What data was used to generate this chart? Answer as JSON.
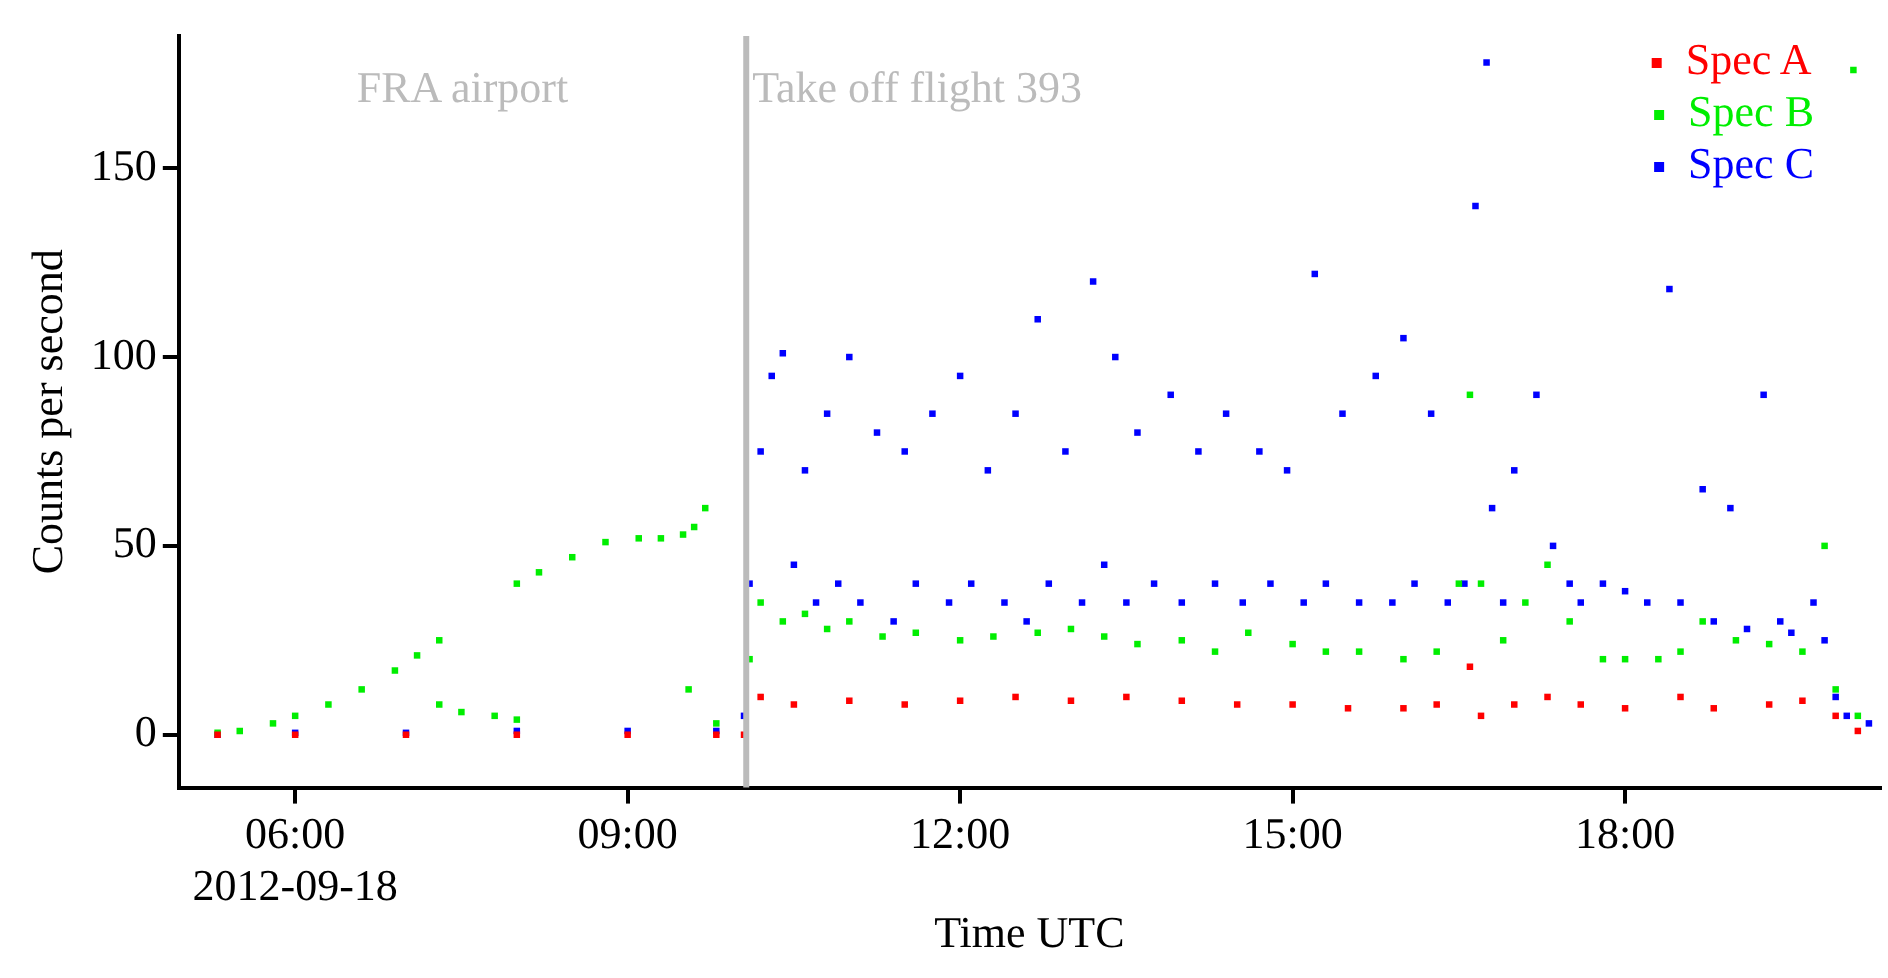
{
  "chart_data": {
    "type": "scatter",
    "xlabel": "Time UTC",
    "ylabel": "Counts per second",
    "marker": "square",
    "legend": "top right",
    "grid": false,
    "xlim": [
      4.95,
      20.3
    ],
    "xticks": [
      {
        "value": 6,
        "label": "06:00\n2012-09-18"
      },
      {
        "value": 9,
        "label": "09:00"
      },
      {
        "value": 12,
        "label": "12:00"
      },
      {
        "value": 15,
        "label": "15:00"
      },
      {
        "value": 18,
        "label": "18:00"
      }
    ],
    "ylim": [
      -14,
      185
    ],
    "yticks": [
      0,
      50,
      100,
      150
    ],
    "ref_lines": [
      {
        "axis": "x",
        "value": 10.07,
        "label": "Take off flight 393",
        "color": "#bbbbbb"
      }
    ],
    "annotations": [
      "FRA airport"
    ],
    "series": [
      {
        "name": "Spec A",
        "color": "#ff0000",
        "x": [
          5.3,
          6,
          7,
          8,
          9,
          9.8,
          10.05,
          10.2,
          10.5,
          11,
          11.5,
          12,
          12.5,
          13,
          13.5,
          14,
          14.5,
          15,
          15.5,
          16,
          16.3,
          16.6,
          16.7,
          17,
          17.3,
          17.6,
          18,
          18.5,
          18.8,
          19.3,
          19.6,
          19.9,
          20.1
        ],
        "values": [
          0,
          0,
          0,
          0,
          0,
          0,
          0,
          10,
          8,
          9,
          8,
          9,
          10,
          9,
          10,
          9,
          8,
          8,
          7,
          7,
          8,
          18,
          5,
          8,
          10,
          8,
          7,
          10,
          7,
          8,
          9,
          5,
          1
        ]
      },
      {
        "name": "Spec B",
        "color": "#00ee00",
        "x": [
          5.3,
          5.5,
          5.8,
          6,
          6.3,
          6.6,
          6.9,
          7.1,
          7.3,
          7.3,
          7.5,
          7.8,
          8,
          8,
          8.2,
          8.5,
          8.8,
          9.1,
          9.3,
          9.5,
          9.6,
          9.7,
          9.55,
          9.8,
          10.1,
          10.2,
          10.4,
          10.6,
          10.8,
          11,
          11.3,
          11.6,
          12,
          12.3,
          12.7,
          13,
          13.3,
          13.6,
          14,
          14.3,
          14.6,
          15,
          15.3,
          15.6,
          16,
          16.3,
          16.5,
          16.6,
          16.7,
          16.9,
          17.1,
          17.3,
          17.5,
          17.8,
          18,
          18.3,
          18.5,
          18.7,
          19,
          19.3,
          19.6,
          19.8,
          19.9,
          20.06,
          20.1
        ],
        "values": [
          0.5,
          1,
          3,
          5,
          8,
          12,
          17,
          21,
          25,
          8,
          6,
          5,
          4,
          40,
          43,
          47,
          51,
          52,
          52,
          53,
          55,
          60,
          12,
          3,
          20,
          35,
          30,
          32,
          28,
          30,
          26,
          27,
          25,
          26,
          27,
          28,
          26,
          24,
          25,
          22,
          27,
          24,
          22,
          22,
          20,
          22,
          40,
          90,
          40,
          25,
          35,
          45,
          30,
          20,
          20,
          20,
          22,
          30,
          25,
          24,
          22,
          50,
          12,
          176,
          5
        ]
      },
      {
        "name": "Spec C",
        "color": "#0000ff",
        "x": [
          5.3,
          6,
          7,
          8,
          9,
          9.8,
          10.05,
          10.1,
          10.2,
          10.3,
          10.4,
          10.5,
          10.6,
          10.7,
          10.8,
          10.9,
          11,
          11.1,
          11.25,
          11.4,
          11.5,
          11.6,
          11.75,
          11.9,
          12,
          12.1,
          12.25,
          12.4,
          12.5,
          12.6,
          12.7,
          12.8,
          12.95,
          13.1,
          13.2,
          13.3,
          13.4,
          13.5,
          13.6,
          13.75,
          13.9,
          14,
          14.15,
          14.3,
          14.4,
          14.55,
          14.7,
          14.8,
          14.95,
          15.1,
          15.2,
          15.3,
          15.45,
          15.6,
          15.75,
          15.9,
          16,
          16.1,
          16.25,
          16.4,
          16.55,
          16.65,
          16.75,
          16.8,
          16.9,
          17,
          17.2,
          17.35,
          17.5,
          17.6,
          17.8,
          18,
          18.2,
          18.4,
          18.5,
          18.7,
          18.8,
          18.95,
          19.1,
          19.25,
          19.4,
          19.5,
          19.7,
          19.8,
          19.9,
          20,
          20.2
        ],
        "values": [
          0,
          0.5,
          0.5,
          1,
          1,
          1,
          5,
          40,
          75,
          95,
          101,
          45,
          70,
          35,
          85,
          40,
          100,
          35,
          80,
          30,
          75,
          40,
          85,
          35,
          95,
          40,
          70,
          35,
          85,
          30,
          110,
          40,
          75,
          35,
          120,
          45,
          100,
          35,
          80,
          40,
          90,
          35,
          75,
          40,
          85,
          35,
          75,
          40,
          70,
          35,
          122,
          40,
          85,
          35,
          95,
          35,
          105,
          40,
          85,
          35,
          40,
          140,
          178,
          60,
          35,
          70,
          90,
          50,
          40,
          35,
          40,
          38,
          35,
          118,
          35,
          65,
          30,
          60,
          28,
          90,
          30,
          27,
          35,
          25,
          10,
          5,
          3
        ]
      }
    ]
  }
}
